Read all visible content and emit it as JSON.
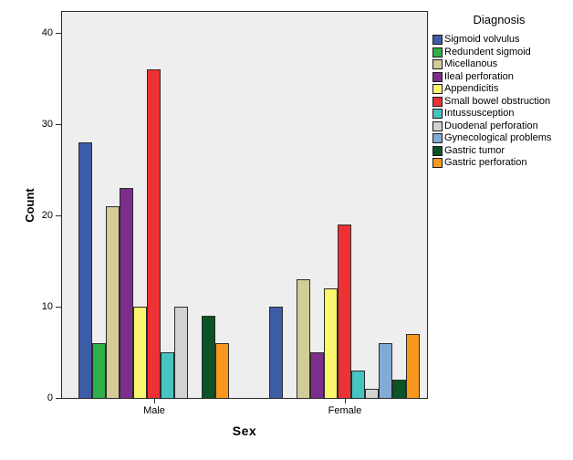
{
  "chart_data": {
    "type": "bar",
    "title": "",
    "xlabel": "Sex",
    "ylabel": "Count",
    "categories": [
      "Male",
      "Female"
    ],
    "y_ticks": [
      0,
      10,
      20,
      30,
      40
    ],
    "ylim": [
      0,
      42.3
    ],
    "grid": false,
    "legend_title": "Diagnosis",
    "legend_position": "right",
    "series": [
      {
        "name": "Sigmoid volvulus",
        "color": "#3D5CA8",
        "values": [
          28,
          10
        ]
      },
      {
        "name": "Redundent sigmoid",
        "color": "#2EB14A",
        "values": [
          6,
          0
        ]
      },
      {
        "name": "Micellanous",
        "color": "#D3CC97",
        "values": [
          21,
          13
        ]
      },
      {
        "name": "Ileal perforation",
        "color": "#7D2E8C",
        "values": [
          23,
          5
        ]
      },
      {
        "name": "Appendicitis",
        "color": "#FAF76E",
        "values": [
          10,
          12
        ]
      },
      {
        "name": "Small bowel obstruction",
        "color": "#EE3133",
        "values": [
          36,
          19
        ]
      },
      {
        "name": "Intussusception",
        "color": "#46C4C2",
        "values": [
          5,
          3
        ]
      },
      {
        "name": "Duodenal perforation",
        "color": "#D2D2D2",
        "values": [
          10,
          1
        ]
      },
      {
        "name": "Gynecological problems",
        "color": "#7FABD4",
        "values": [
          0,
          6
        ]
      },
      {
        "name": "Gastric tumor",
        "color": "#0C5327",
        "values": [
          9,
          2
        ]
      },
      {
        "name": "Gastric perforation",
        "color": "#F8981D",
        "values": [
          6,
          7
        ]
      }
    ]
  },
  "styles": {
    "canvas_bg": "#FFFFFF",
    "plot_bg": "#EEEEEE",
    "frame": "#2B2B2B",
    "bar_border": "#2B2B2B",
    "text": "#000000"
  }
}
